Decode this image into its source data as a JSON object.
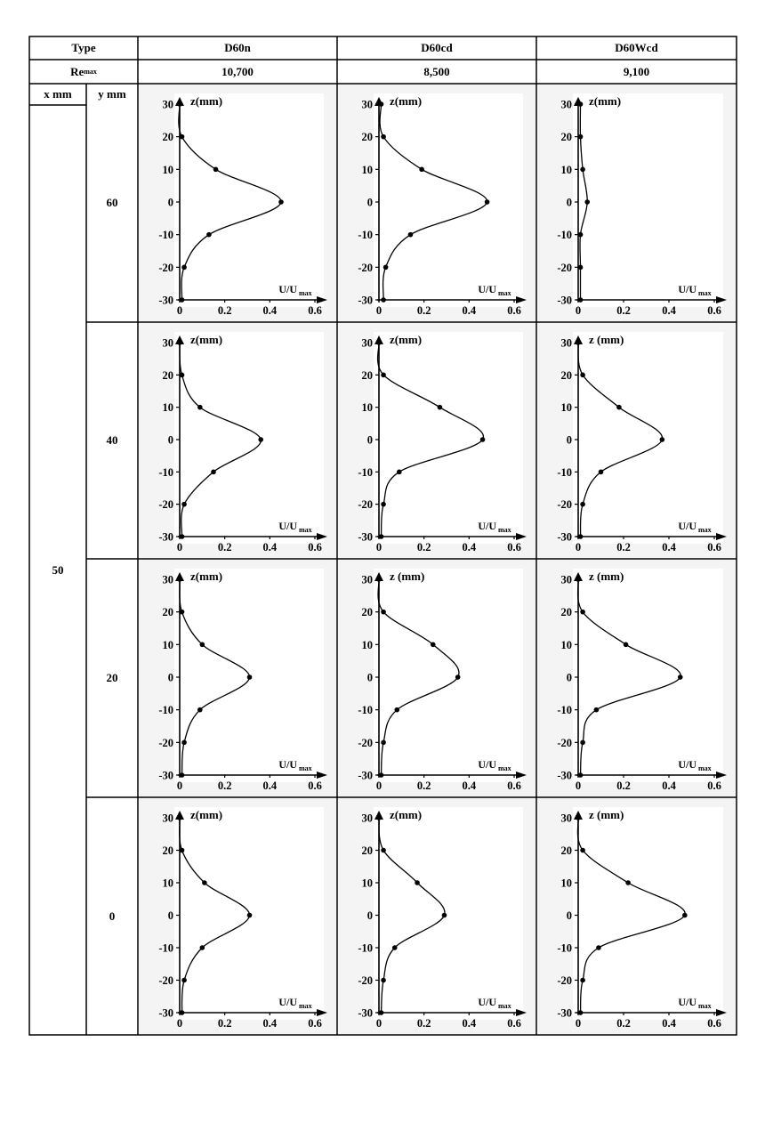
{
  "header": {
    "type_label": "Type",
    "re_label": "Re",
    "re_sup": "max",
    "x_col_label": "x mm",
    "y_col_label": "y mm",
    "x_value": "50"
  },
  "columns": [
    {
      "type": "D60n",
      "re": "10,700"
    },
    {
      "type": "D60cd",
      "re": "8,500"
    },
    {
      "type": "D60Wcd",
      "re": "9,100"
    }
  ],
  "rows": [
    {
      "y": "60"
    },
    {
      "y": "40"
    },
    {
      "y": "20"
    },
    {
      "y": "0"
    }
  ],
  "axis": {
    "z_label": "z(mm)",
    "z_label_spaced": "z  (mm)",
    "u_label_main": "U/U",
    "u_label_sub": "max",
    "z_ticks": [
      "30",
      "20",
      "10",
      "0",
      "-10",
      "-20",
      "-30"
    ],
    "u_ticks": [
      "0",
      "0.2",
      "0.4",
      "0.6"
    ]
  },
  "colors": {
    "panel_bg": "#f4f4f4",
    "plot_bg": "#ffffff",
    "line": "#000000"
  },
  "chart_data": {
    "type": "line",
    "xlabel": "U/Umax",
    "ylabel": "z(mm)",
    "xlim": [
      0,
      0.6
    ],
    "ylim": [
      -30,
      30
    ],
    "z": [
      30,
      20,
      10,
      0,
      -10,
      -20,
      -30
    ],
    "grid": false,
    "panels": [
      {
        "column": "D60n",
        "y_mm": "60",
        "values": [
          0.0,
          0.01,
          0.16,
          0.45,
          0.13,
          0.02,
          0.01
        ]
      },
      {
        "column": "D60cd",
        "y_mm": "60",
        "values": [
          0.01,
          0.02,
          0.19,
          0.48,
          0.14,
          0.03,
          0.02
        ]
      },
      {
        "column": "D60Wcd",
        "y_mm": "60",
        "values": [
          0.01,
          0.01,
          0.02,
          0.04,
          0.01,
          0.01,
          0.01
        ]
      },
      {
        "column": "D60n",
        "y_mm": "40",
        "values": [
          0.0,
          0.01,
          0.09,
          0.36,
          0.15,
          0.02,
          0.01
        ]
      },
      {
        "column": "D60cd",
        "y_mm": "40",
        "values": [
          0.0,
          0.02,
          0.27,
          0.46,
          0.09,
          0.02,
          0.01
        ]
      },
      {
        "column": "D60Wcd",
        "y_mm": "40",
        "values": [
          0.0,
          0.02,
          0.18,
          0.37,
          0.1,
          0.02,
          0.01
        ]
      },
      {
        "column": "D60n",
        "y_mm": "20",
        "values": [
          0.0,
          0.01,
          0.1,
          0.31,
          0.09,
          0.02,
          0.01
        ]
      },
      {
        "column": "D60cd",
        "y_mm": "20",
        "values": [
          0.0,
          0.02,
          0.24,
          0.35,
          0.08,
          0.02,
          0.01
        ]
      },
      {
        "column": "D60Wcd",
        "y_mm": "20",
        "values": [
          0.0,
          0.02,
          0.21,
          0.45,
          0.08,
          0.02,
          0.01
        ]
      },
      {
        "column": "D60n",
        "y_mm": "0",
        "values": [
          0.0,
          0.01,
          0.11,
          0.31,
          0.1,
          0.02,
          0.01
        ]
      },
      {
        "column": "D60cd",
        "y_mm": "0",
        "values": [
          0.0,
          0.02,
          0.17,
          0.29,
          0.07,
          0.02,
          0.01
        ]
      },
      {
        "column": "D60Wcd",
        "y_mm": "0",
        "values": [
          0.0,
          0.02,
          0.22,
          0.47,
          0.09,
          0.02,
          0.01
        ]
      }
    ]
  }
}
